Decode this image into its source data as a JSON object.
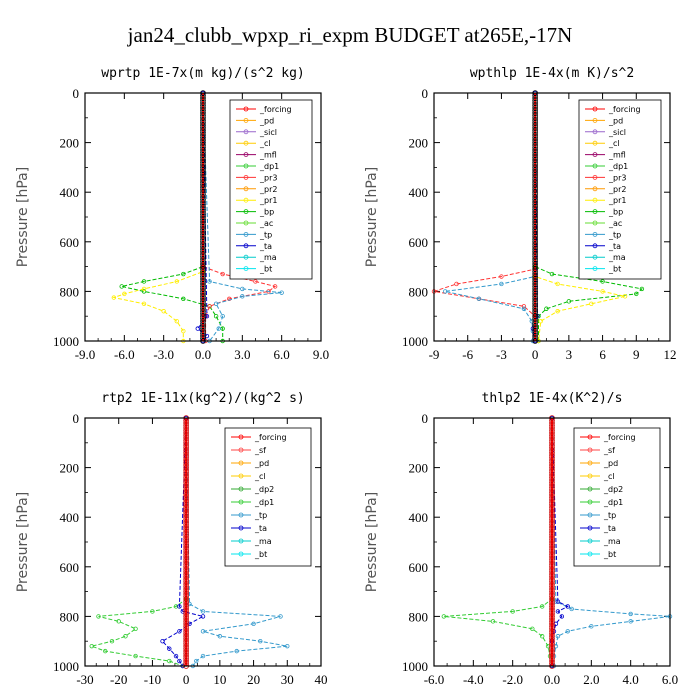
{
  "figure_title": "jan24_clubb_wpxp_ri_expm  BUDGET at265E,-17N",
  "colors": {
    "_forcing": "#ff0000",
    "_pd": "#ffa500",
    "_sicl": "#9966cc",
    "_cl": "#ffcc00",
    "_mfl": "#990066",
    "_dp1": "#33cc33",
    "_dp2": "#33aa33",
    "_pr3": "#ff3333",
    "_pr2": "#ff9900",
    "_pr1": "#ffee00",
    "_bp": "#00bb00",
    "_ac": "#66dd33",
    "_tp": "#3399cc",
    "_ta": "#0000cc",
    "_ma": "#00cccc",
    "_bt": "#00e5ee",
    "_sf": "#ff4444"
  },
  "chart_data": [
    {
      "type": "line",
      "title": "wprtp  1E-7x(m kg)/(s^2 kg)",
      "ylabel": "Pressure [hPa]",
      "xlim": [
        -9,
        9
      ],
      "ylim": [
        1000,
        0
      ],
      "xticks": [
        "-9.0",
        "-6.0",
        "-3.0",
        "0.0",
        "3.0",
        "6.0",
        "9.0"
      ],
      "yticks": [
        "0",
        "200",
        "400",
        "600",
        "800",
        "1000"
      ],
      "legend": [
        "_forcing",
        "_pd",
        "_sicl",
        "_cl",
        "_mfl",
        "_dp1",
        "_pr3",
        "_pr2",
        "_pr1",
        "_bp",
        "_ac",
        "_tp",
        "_ta",
        "_ma",
        "_bt"
      ],
      "series": [
        {
          "name": "_bp",
          "p": [
            0,
            700,
            730,
            760,
            780,
            800,
            830,
            860,
            900,
            950,
            1000
          ],
          "x": [
            0,
            0,
            -1.5,
            -4.5,
            -6.2,
            -4.5,
            -1.5,
            0.5,
            1.0,
            1.5,
            1.5
          ]
        },
        {
          "name": "_pr1",
          "p": [
            0,
            720,
            760,
            790,
            810,
            825,
            850,
            880,
            920,
            960,
            1000
          ],
          "x": [
            0,
            0,
            -2,
            -4.5,
            -6,
            -6.8,
            -4.5,
            -3,
            -2,
            -1.5,
            -1.5
          ]
        },
        {
          "name": "_pr3",
          "p": [
            0,
            700,
            730,
            760,
            780,
            800,
            830,
            860,
            900,
            1000
          ],
          "x": [
            0,
            0,
            1.5,
            4,
            5.5,
            5,
            2,
            0.5,
            0.2,
            0.2
          ]
        },
        {
          "name": "_tp",
          "p": [
            0,
            760,
            790,
            805,
            820,
            850,
            900,
            950,
            1000
          ],
          "x": [
            0,
            0.5,
            3,
            6,
            3,
            1,
            1.5,
            1.2,
            0.5
          ]
        },
        {
          "name": "_ta",
          "p": [
            0,
            900,
            950,
            980,
            1000
          ],
          "x": [
            0,
            0.3,
            -0.4,
            0.3,
            0
          ]
        },
        {
          "name": "_forcing",
          "p": [
            0,
            1000
          ],
          "x": [
            0,
            0
          ]
        }
      ]
    },
    {
      "type": "line",
      "title": "wpthlp  1E-4x(m K)/s^2",
      "ylabel": "Pressure [hPa]",
      "xlim": [
        -9,
        12
      ],
      "ylim": [
        1000,
        0
      ],
      "xticks": [
        "-9",
        "-6",
        "-3",
        "0",
        "3",
        "6",
        "9",
        "12"
      ],
      "yticks": [
        "0",
        "200",
        "400",
        "600",
        "800",
        "1000"
      ],
      "legend": [
        "_forcing",
        "_pd",
        "_sicl",
        "_cl",
        "_mfl",
        "_dp1",
        "_pr3",
        "_pr2",
        "_pr1",
        "_bp",
        "_ac",
        "_tp",
        "_ta",
        "_ma",
        "_bt"
      ],
      "series": [
        {
          "name": "_pr3",
          "p": [
            0,
            710,
            740,
            770,
            800,
            830,
            860,
            900,
            1000
          ],
          "x": [
            0,
            0,
            -3,
            -7,
            -9,
            -5,
            -1,
            0,
            0
          ]
        },
        {
          "name": "_tp",
          "p": [
            0,
            740,
            770,
            800,
            830,
            870,
            920,
            960,
            1000
          ],
          "x": [
            0,
            0,
            -3,
            -8,
            -5,
            -1,
            -0.3,
            -0.2,
            -0.2
          ]
        },
        {
          "name": "_bp",
          "p": [
            0,
            700,
            730,
            760,
            790,
            810,
            840,
            870,
            900,
            1000
          ],
          "x": [
            0,
            0,
            1.5,
            6,
            9.5,
            9,
            3,
            1,
            0.3,
            0.3
          ]
        },
        {
          "name": "_pr1",
          "p": [
            0,
            740,
            770,
            800,
            820,
            850,
            880,
            920,
            1000
          ],
          "x": [
            0,
            0,
            2,
            6,
            8,
            5,
            2,
            0.5,
            0.3
          ]
        },
        {
          "name": "_ta",
          "p": [
            0,
            900,
            950,
            1000
          ],
          "x": [
            0,
            0.2,
            -0.2,
            0
          ]
        },
        {
          "name": "_forcing",
          "p": [
            0,
            1000
          ],
          "x": [
            0,
            0
          ]
        }
      ]
    },
    {
      "type": "line",
      "title": "rtp2  1E-11x(kg^2)/(kg^2 s)",
      "ylabel": "Pressure [hPa]",
      "xlim": [
        -30,
        40
      ],
      "ylim": [
        1000,
        0
      ],
      "xticks": [
        "-30",
        "-20",
        "-10",
        "0",
        "10",
        "20",
        "30",
        "40"
      ],
      "yticks": [
        "0",
        "200",
        "400",
        "600",
        "800",
        "1000"
      ],
      "legend": [
        "_forcing",
        "_sf",
        "_pd",
        "_cl",
        "_dp2",
        "_dp1",
        "_tp",
        "_ta",
        "_ma",
        "_bt"
      ],
      "series": [
        {
          "name": "_dp1",
          "p": [
            0,
            730,
            760,
            780,
            800,
            820,
            850,
            880,
            900,
            920,
            940,
            960,
            980,
            1000
          ],
          "x": [
            0,
            0,
            -3,
            -10,
            -26,
            -20,
            -15,
            -18,
            -22,
            -28,
            -24,
            -15,
            -5,
            -1
          ]
        },
        {
          "name": "_tp",
          "p": [
            0,
            750,
            780,
            800,
            830,
            860,
            880,
            900,
            920,
            940,
            960,
            980,
            1000
          ],
          "x": [
            0,
            1,
            5,
            28,
            20,
            5,
            10,
            22,
            30,
            15,
            5,
            3,
            2
          ]
        },
        {
          "name": "_ta",
          "p": [
            0,
            760,
            780,
            800,
            830,
            860,
            900,
            930,
            960,
            980,
            1000
          ],
          "x": [
            0,
            -2,
            -1,
            5,
            1,
            -2,
            -7,
            -5,
            -3,
            -2,
            -1
          ]
        },
        {
          "name": "_forcing",
          "p": [
            0,
            1000
          ],
          "x": [
            0,
            0
          ]
        }
      ]
    },
    {
      "type": "line",
      "title": "thlp2  1E-4x(K^2)/s",
      "ylabel": "Pressure [hPa]",
      "xlim": [
        -6,
        6
      ],
      "ylim": [
        1000,
        0
      ],
      "xticks": [
        "-6.0",
        "-4.0",
        "-2.0",
        "0.0",
        "2.0",
        "4.0",
        "6.0"
      ],
      "yticks": [
        "0",
        "200",
        "400",
        "600",
        "800",
        "1000"
      ],
      "legend": [
        "_forcing",
        "_sf",
        "_pd",
        "_cl",
        "_dp2",
        "_dp1",
        "_tp",
        "_ta",
        "_ma",
        "_bt"
      ],
      "series": [
        {
          "name": "_dp1",
          "p": [
            0,
            730,
            760,
            780,
            800,
            820,
            850,
            880,
            920,
            960,
            1000
          ],
          "x": [
            0,
            0,
            -0.5,
            -2,
            -5.5,
            -3,
            -1,
            -0.5,
            -0.2,
            -0.1,
            0
          ]
        },
        {
          "name": "_tp",
          "p": [
            0,
            740,
            770,
            790,
            800,
            820,
            840,
            860,
            880,
            920,
            960,
            1000
          ],
          "x": [
            0,
            0.2,
            1,
            4,
            6,
            4,
            2,
            0.8,
            0.3,
            0.2,
            0.1,
            0.1
          ]
        },
        {
          "name": "_ta",
          "p": [
            0,
            740,
            760,
            780,
            800,
            830,
            860,
            900,
            1000
          ],
          "x": [
            0,
            0.3,
            0.8,
            0.3,
            0.5,
            0.2,
            0.1,
            0,
            0
          ]
        },
        {
          "name": "_forcing",
          "p": [
            0,
            1000
          ],
          "x": [
            0,
            0
          ]
        }
      ]
    }
  ]
}
